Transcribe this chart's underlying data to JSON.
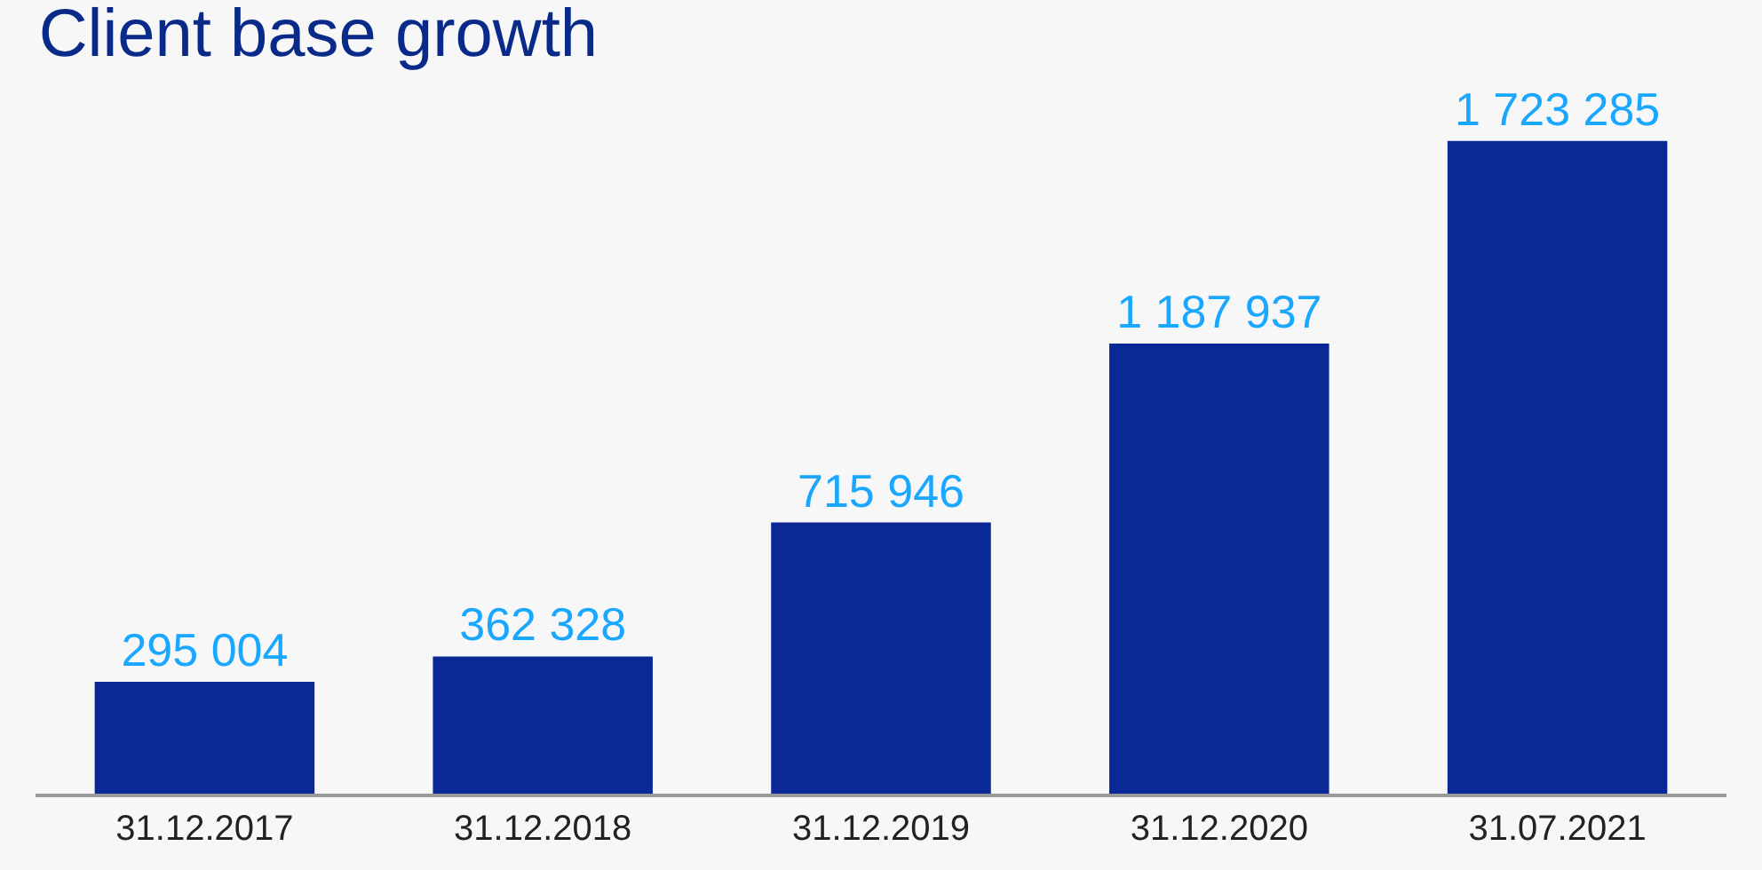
{
  "chart_data": {
    "type": "bar",
    "title": "Client base growth",
    "categories": [
      "31.12.2017",
      "31.12.2018",
      "31.12.2019",
      "31.12.2020",
      "31.07.2021"
    ],
    "values": [
      295004,
      362328,
      715946,
      1187937,
      1723285
    ],
    "value_labels": [
      "295 004",
      "362 328",
      "715 946",
      "1 187 937",
      "1 723 285"
    ],
    "color": "#0a2896",
    "grid": false,
    "legend": false
  }
}
